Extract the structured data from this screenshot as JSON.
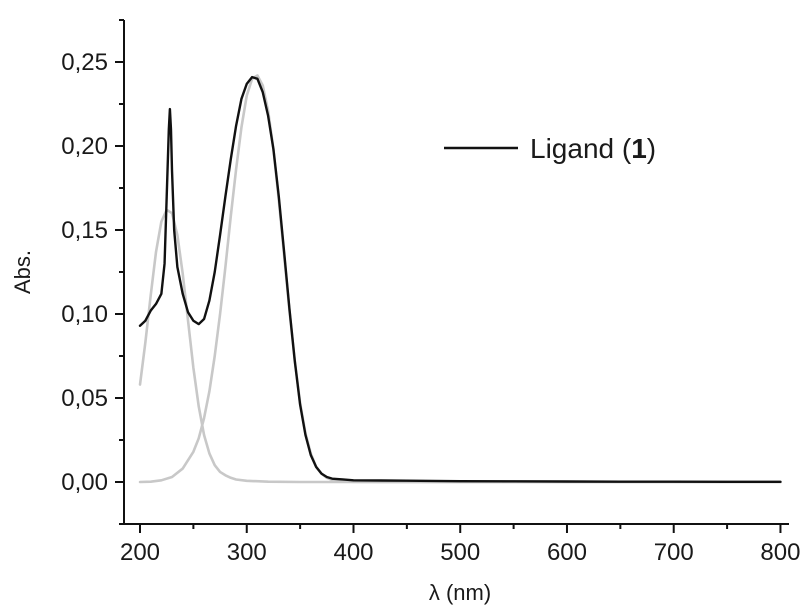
{
  "chart_data": {
    "type": "line",
    "title": "",
    "xlabel": "λ (nm)",
    "ylabel": "Abs.",
    "xlim": [
      185,
      808
    ],
    "ylim": [
      -0.025,
      0.275
    ],
    "x_ticks": [
      200,
      300,
      400,
      500,
      600,
      700,
      800
    ],
    "x_tick_labels": [
      "200",
      "300",
      "400",
      "500",
      "600",
      "700",
      "800"
    ],
    "y_ticks": [
      0.0,
      0.05,
      0.1,
      0.15,
      0.2,
      0.25
    ],
    "y_tick_labels": [
      "0,00",
      "0,05",
      "0,10",
      "0,15",
      "0,20",
      "0,25"
    ],
    "grid": false,
    "legend_position": "top-right",
    "legend": [
      {
        "prefix": "Ligand (",
        "bold": "1",
        "suffix": ")"
      }
    ],
    "series": [
      {
        "name": "Ligand (1)",
        "color": "#111111",
        "x": [
          200,
          205,
          210,
          215,
          220,
          223,
          225,
          227,
          228,
          229,
          230,
          232,
          235,
          240,
          245,
          250,
          255,
          260,
          265,
          270,
          275,
          280,
          285,
          290,
          295,
          300,
          305,
          310,
          315,
          320,
          325,
          330,
          335,
          340,
          345,
          350,
          355,
          360,
          365,
          370,
          375,
          380,
          390,
          400,
          450,
          500,
          550,
          600,
          650,
          700,
          750,
          800
        ],
        "y": [
          0.093,
          0.096,
          0.102,
          0.106,
          0.112,
          0.13,
          0.17,
          0.21,
          0.222,
          0.21,
          0.185,
          0.15,
          0.128,
          0.112,
          0.101,
          0.096,
          0.094,
          0.097,
          0.108,
          0.125,
          0.147,
          0.17,
          0.192,
          0.212,
          0.228,
          0.237,
          0.241,
          0.24,
          0.232,
          0.218,
          0.198,
          0.17,
          0.137,
          0.103,
          0.072,
          0.046,
          0.028,
          0.016,
          0.009,
          0.005,
          0.003,
          0.002,
          0.0015,
          0.001,
          0.0008,
          0.0005,
          0.0004,
          0.0003,
          0.0002,
          0.0002,
          0.0001,
          0.0001
        ]
      },
      {
        "name": "",
        "color": "#c8c8c8",
        "x": [
          200,
          205,
          210,
          215,
          220,
          225,
          230,
          235,
          240,
          245,
          250,
          255,
          260,
          265,
          270,
          275,
          280,
          285,
          290,
          300,
          320,
          350,
          400,
          800
        ],
        "y": [
          0.058,
          0.083,
          0.111,
          0.137,
          0.155,
          0.162,
          0.16,
          0.147,
          0.124,
          0.096,
          0.068,
          0.045,
          0.028,
          0.017,
          0.01,
          0.006,
          0.004,
          0.0025,
          0.0015,
          0.0007,
          0.0002,
          0.0,
          0.0,
          0.0
        ]
      },
      {
        "name": "",
        "color": "#c8c8c8",
        "x": [
          200,
          210,
          220,
          230,
          240,
          250,
          255,
          260,
          265,
          270,
          275,
          280,
          285,
          290,
          295,
          300,
          305,
          310,
          315,
          320,
          325,
          330,
          335,
          340,
          345,
          350,
          355,
          360,
          365,
          370,
          375,
          380,
          390,
          400,
          450,
          500,
          600,
          700,
          800
        ],
        "y": [
          0.0,
          0.0002,
          0.001,
          0.003,
          0.008,
          0.018,
          0.026,
          0.038,
          0.054,
          0.075,
          0.1,
          0.128,
          0.158,
          0.186,
          0.211,
          0.23,
          0.24,
          0.242,
          0.236,
          0.221,
          0.198,
          0.168,
          0.135,
          0.102,
          0.072,
          0.047,
          0.029,
          0.017,
          0.009,
          0.005,
          0.0025,
          0.0012,
          0.0003,
          0.0001,
          0.0,
          0.0,
          0.0,
          0.0,
          0.0
        ]
      }
    ]
  }
}
